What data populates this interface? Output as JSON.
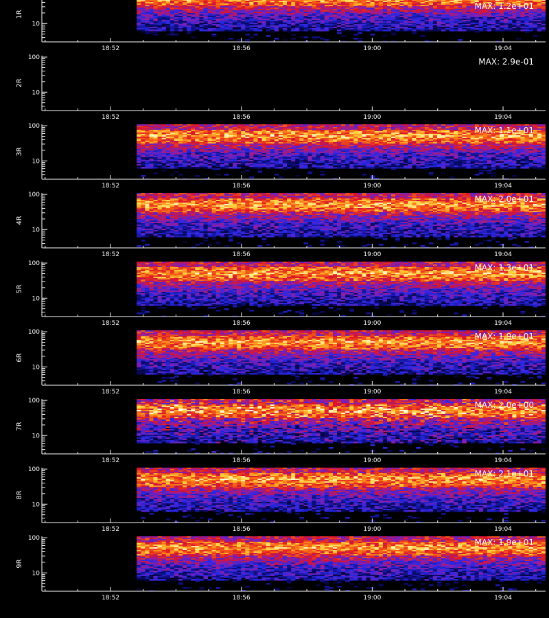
{
  "chart_data": {
    "type": "heatmap",
    "x_ticks": [
      "18:52",
      "18:56",
      "19:00",
      "19:04"
    ],
    "x_tick_minutes": [
      52,
      56,
      60,
      64
    ],
    "x_range_minutes": [
      49.9,
      65.3
    ],
    "data_start_minute": 52.8,
    "y_scale": "log",
    "y_range": [
      3,
      110
    ],
    "y_ticks": [
      "100",
      "10"
    ],
    "y_tick_values": [
      100,
      10
    ],
    "x_title": "",
    "panels": [
      {
        "ylabel": "1R",
        "max_label": "MAX: 1.2e+01",
        "has_data": true,
        "max_value": 12.0
      },
      {
        "ylabel": "2R",
        "max_label": "MAX: 2.9e-01",
        "has_data": false,
        "max_value": 0.29
      },
      {
        "ylabel": "3R",
        "max_label": "MAX: 1.1e+01",
        "has_data": true,
        "max_value": 11.0
      },
      {
        "ylabel": "4R",
        "max_label": "MAX: 2.0e+01",
        "has_data": true,
        "max_value": 20.0
      },
      {
        "ylabel": "5R",
        "max_label": "MAX: 1.3e+01",
        "has_data": true,
        "max_value": 13.0
      },
      {
        "ylabel": "6R",
        "max_label": "MAX: 1.9e+01",
        "has_data": true,
        "max_value": 19.0
      },
      {
        "ylabel": "7R",
        "max_label": "MAX: 2.0e+00",
        "has_data": true,
        "max_value": 2.0
      },
      {
        "ylabel": "8R",
        "max_label": "MAX: 2.1e+01",
        "has_data": true,
        "max_value": 21.0
      },
      {
        "ylabel": "9R",
        "max_label": "MAX: 1.9e+01",
        "has_data": true,
        "max_value": 19.0
      }
    ]
  }
}
